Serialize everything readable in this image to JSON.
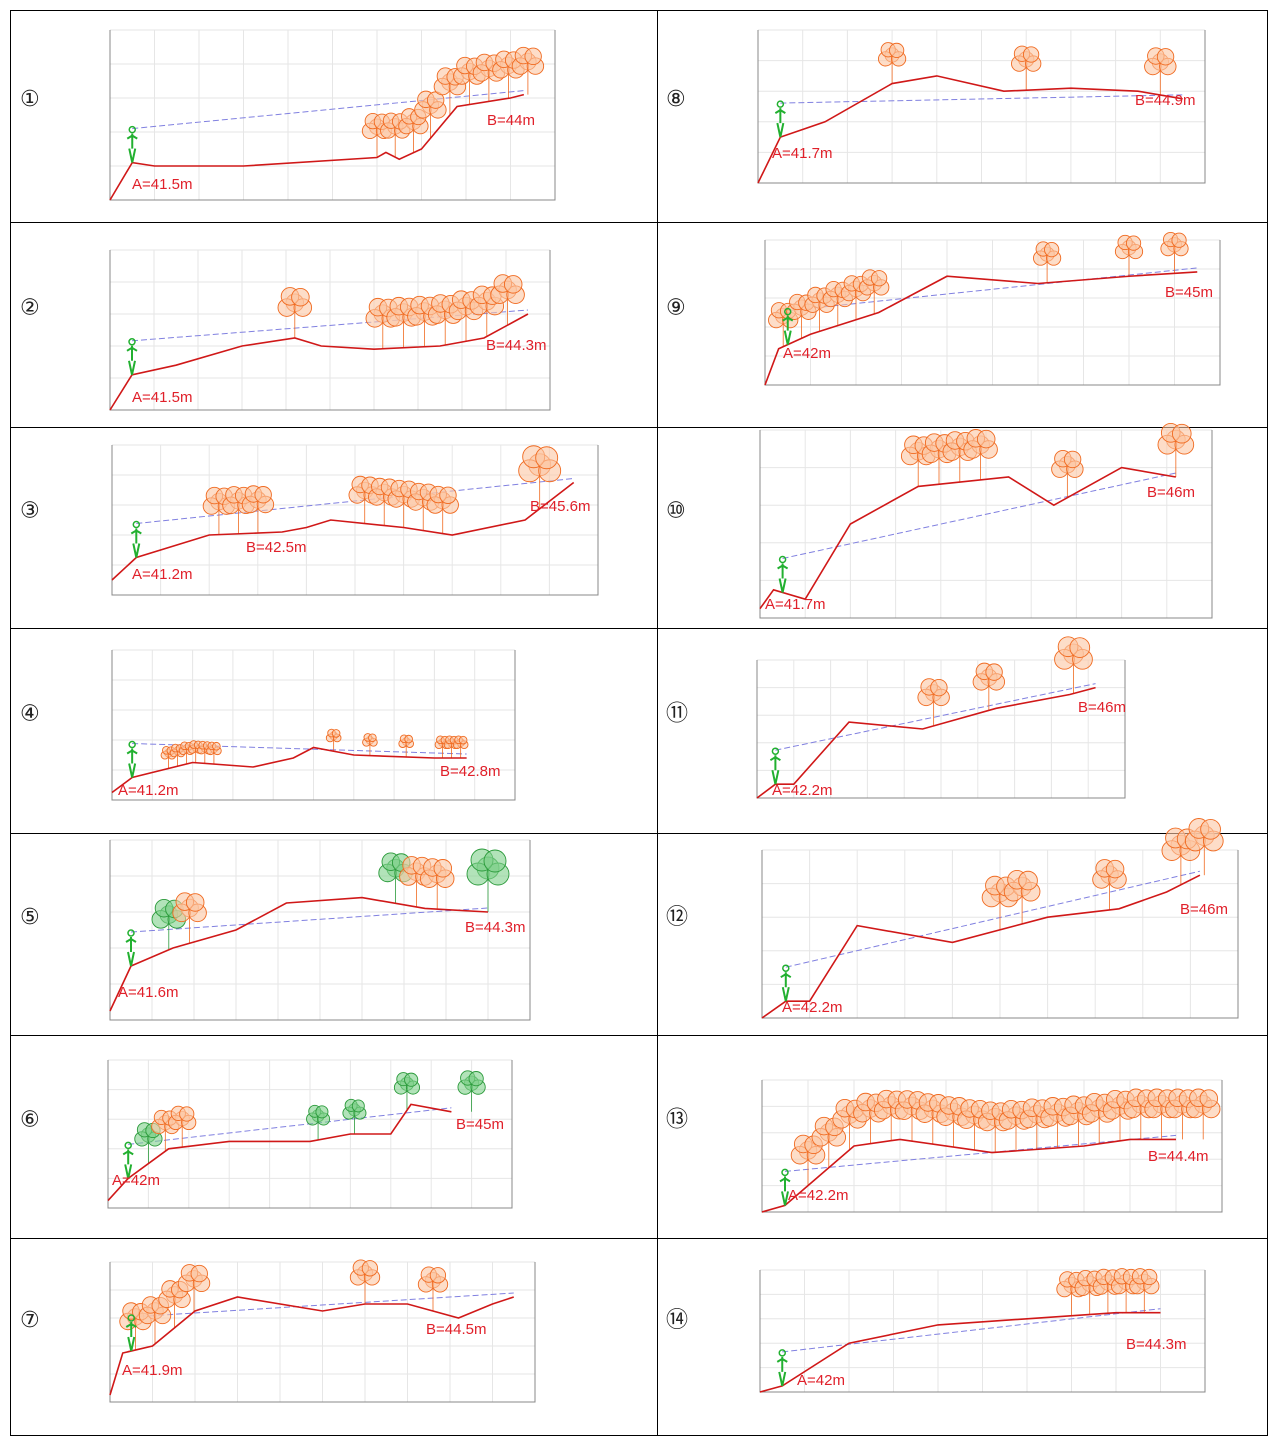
{
  "panels": [
    {
      "number": "①",
      "labels": [
        "A=41.5m",
        "B=44m"
      ]
    },
    {
      "number": "②",
      "labels": [
        "A=41.5m",
        "B=44.3m"
      ]
    },
    {
      "number": "③",
      "labels": [
        "A=41.2m",
        "B=42.5m",
        "B=45.6m"
      ]
    },
    {
      "number": "④",
      "labels": [
        "A=41.2m",
        "B=42.8m"
      ]
    },
    {
      "number": "⑤",
      "labels": [
        "A=41.6m",
        "B=44.3m"
      ]
    },
    {
      "number": "⑥",
      "labels": [
        "A=42m",
        "B=45m"
      ]
    },
    {
      "number": "⑦",
      "labels": [
        "A=41.9m",
        "B=44.5m"
      ]
    },
    {
      "number": "⑧",
      "labels": [
        "A=41.7m",
        "B=44.9m"
      ]
    },
    {
      "number": "⑨",
      "labels": [
        "A=42m",
        "B=45m"
      ]
    },
    {
      "number": "⑩",
      "labels": [
        "A=41.7m",
        "B=46m"
      ]
    },
    {
      "number": "⑪",
      "labels": [
        "A=42.2m",
        "B=46m"
      ]
    },
    {
      "number": "⑫",
      "labels": [
        "A=42.2m",
        "B=46m"
      ]
    },
    {
      "number": "⑬",
      "labels": [
        "A=42.2m",
        "B=44.4m"
      ]
    },
    {
      "number": "⑭",
      "labels": [
        "A=42m",
        "B=44.3m"
      ]
    }
  ]
}
